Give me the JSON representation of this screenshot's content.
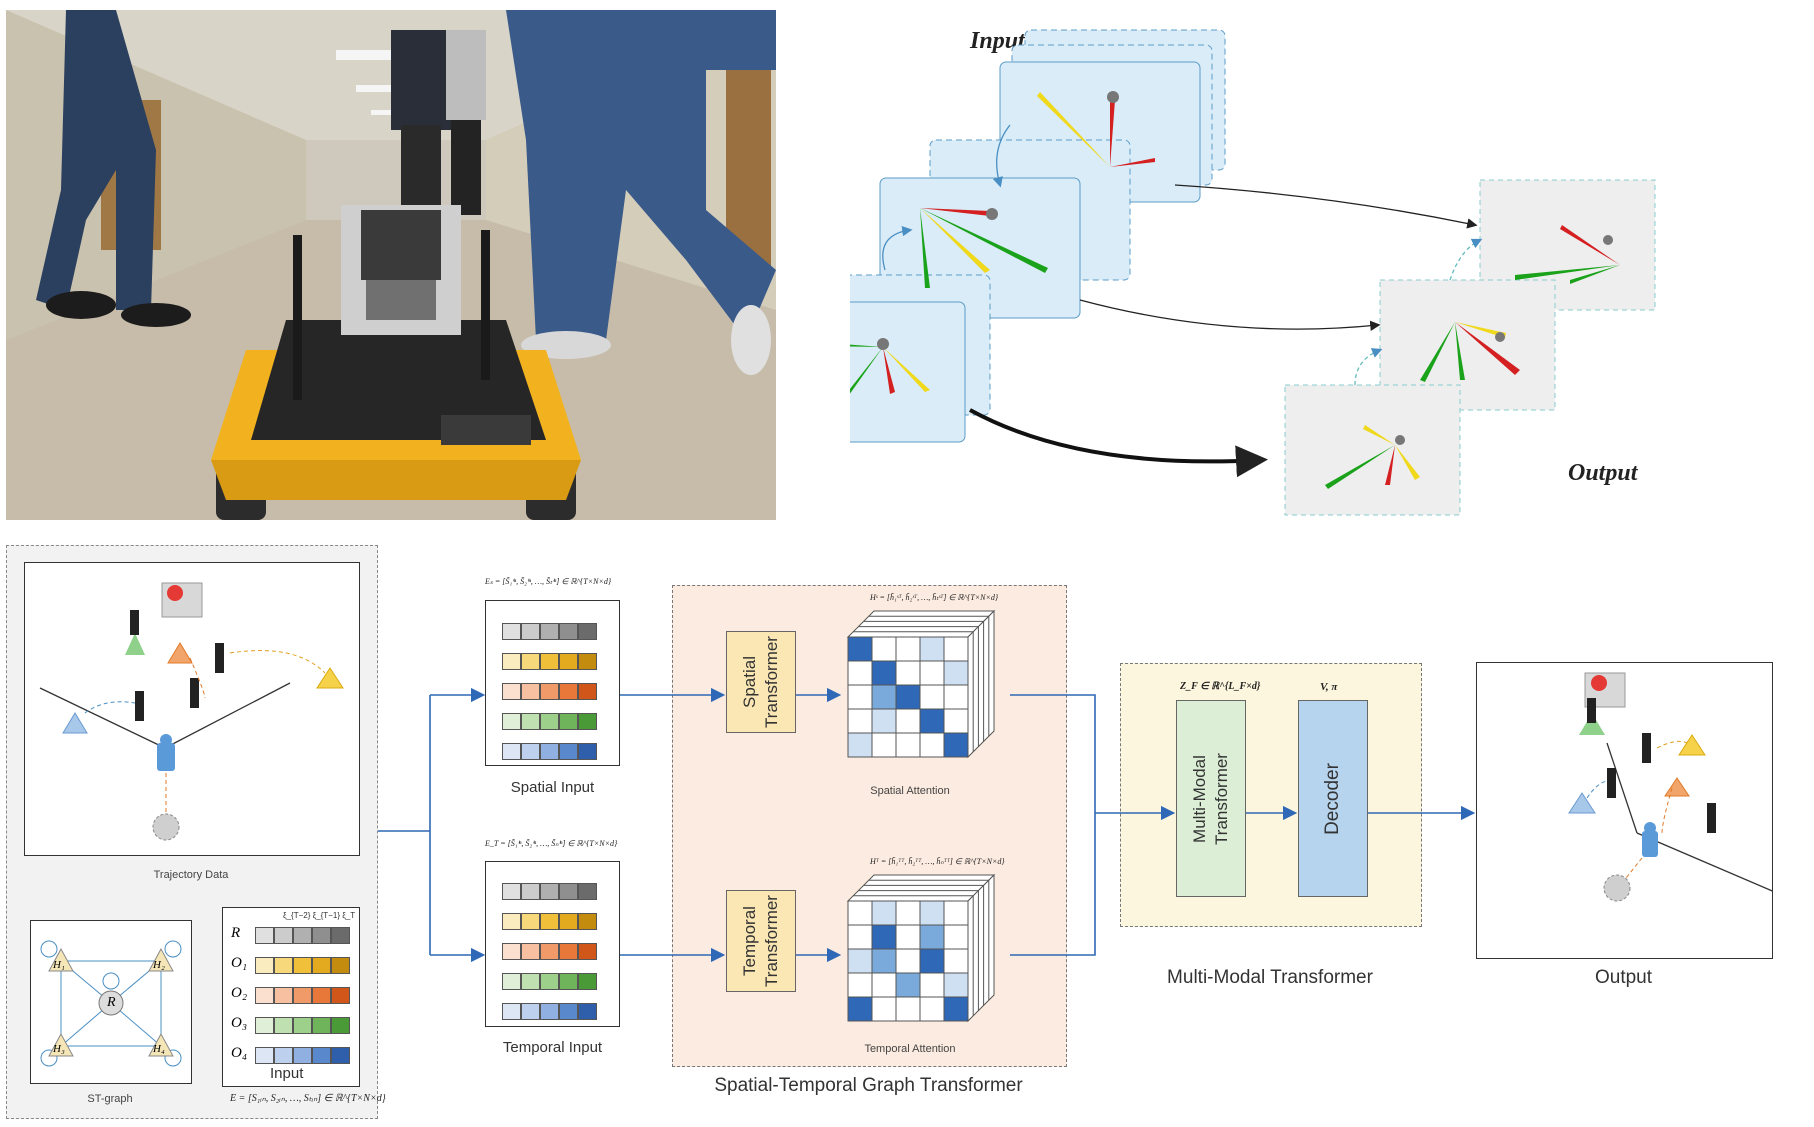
{
  "top_diagram": {
    "input_label": "Input",
    "output_label": "Output"
  },
  "trajectory_panel": {
    "trajectory_caption": "Trajectory Data",
    "st_graph_caption": "ST-graph",
    "input_caption": "Input",
    "nodes": [
      "R",
      "H₁",
      "H₂",
      "H₃",
      "H₄"
    ],
    "row_labels": [
      "R",
      "O₁",
      "O₂",
      "O₃",
      "O₄"
    ],
    "time_header": "ξ_{T−2} ξ_{T−1} ξ_T",
    "e_formula": "E = [S₁ᵢₙ, S₂ᵢₙ, …, Sₜᵢₙ] ∈ ℝ^{T×N×d}"
  },
  "spatial_input": {
    "formula": "Eₛ = [S̃₁ⁱⁿ, S̃₂ⁱⁿ, …, S̃ₜⁱⁿ] ∈ ℝ^{T×N×d}",
    "caption": "Spatial Input"
  },
  "temporal_input": {
    "formula": "E_T = [S̃₁ⁱⁿ, S̃₂ⁱⁿ, …, S̃ₙⁱⁿ] ∈ ℝ^{T×N×d}",
    "caption": "Temporal Input"
  },
  "stgt": {
    "spatial_transformer": "Spatial Transformer",
    "temporal_transformer": "Temporal Transformer",
    "hs_formula": "Hˢ = [h̃₁ˢᵀ, h̃₂ˢᵀ, …, h̃ₜˢᵀ] ∈ ℝ^{T×N×d}",
    "ht_formula": "Hᵀ = [h̃₁ᵀᵀ, h̃₂ᵀᵀ, …, h̃ₙᵀᵀ] ∈ ℝ^{T×N×d}",
    "spatial_attention": "Spatial Attention",
    "temporal_attention": "Temporal Attention",
    "caption": "Spatial-Temporal Graph Transformer"
  },
  "mmt": {
    "zf_formula": "Z_F ∈ ℝ^{L_F×d}",
    "v_formula": "V, π",
    "block_label": "Multi-Modal Transformer",
    "decoder_label": "Decoder",
    "caption": "Multi-Modal Transformer"
  },
  "output": {
    "caption": "Output"
  },
  "colors": {
    "blue": "#2f68b6",
    "orange": "#e07a2a",
    "green": "#3a9a3a",
    "yellow": "#e8c81a",
    "red": "#d82020",
    "panel_blue": "#d9ecf7",
    "panel_gray": "#eeeeee"
  },
  "row_colors": [
    [
      "#e0e0e0",
      "#cccccc",
      "#b0b0b0",
      "#8f8f8f",
      "#6b6b6b"
    ],
    [
      "#fbecc0",
      "#f7d97c",
      "#f0c03a",
      "#e3a91f",
      "#c48c0f"
    ],
    [
      "#fbe0d0",
      "#f7c0a0",
      "#f09a6a",
      "#e8783a",
      "#d0561a"
    ],
    [
      "#e0f0d8",
      "#bfe0b0",
      "#9dd08a",
      "#6fb45a",
      "#4a9a38"
    ],
    [
      "#dce6f5",
      "#bdd0ee",
      "#8fb0e0",
      "#5a88cc",
      "#2f5fab"
    ]
  ]
}
